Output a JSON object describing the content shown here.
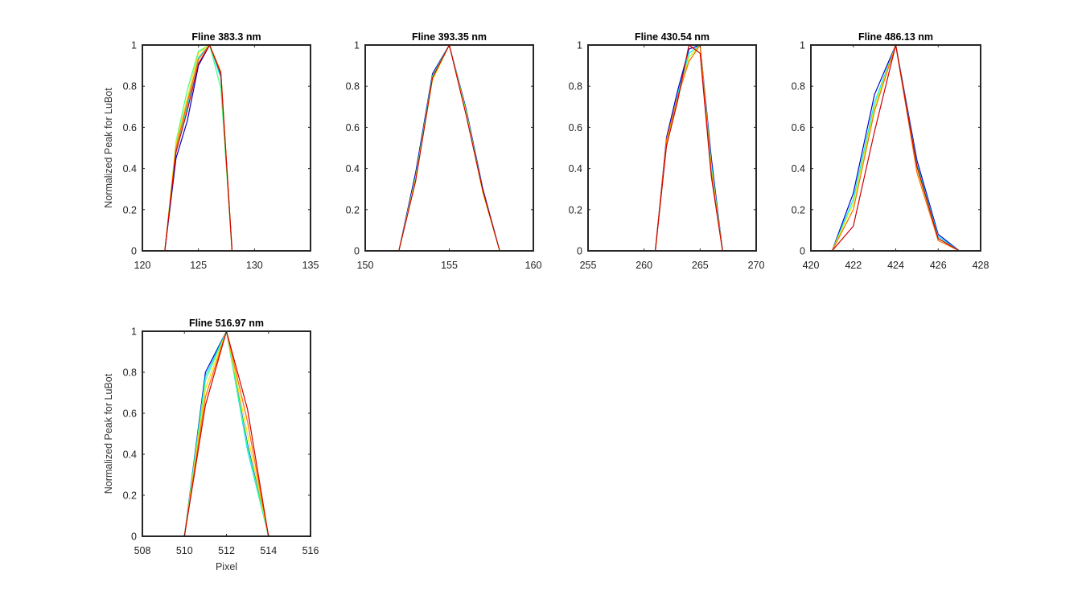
{
  "figure": {
    "background": "#ffffff",
    "axis_color": "#262626",
    "line_colors": [
      "#0000cc",
      "#0080ff",
      "#00e5ff",
      "#40ff80",
      "#c8ff00",
      "#ffdd00",
      "#ff6a00",
      "#e60000",
      "#cc0000"
    ]
  },
  "chart_data": [
    {
      "type": "line",
      "title": "Fline 383.3 nm",
      "xlabel": "",
      "ylabel": "Normalized Peak for LuBot",
      "xlim": [
        120,
        135
      ],
      "ylim": [
        0,
        1
      ],
      "xticks": [
        120,
        125,
        130,
        135
      ],
      "yticks": [
        0,
        0.2,
        0.4,
        0.6,
        0.8,
        1
      ],
      "x": [
        120,
        121,
        122,
        123,
        124,
        125,
        126,
        127,
        128,
        129,
        130,
        131,
        132
      ],
      "series": [
        {
          "values": [
            0,
            0,
            0,
            0.45,
            0.63,
            0.9,
            1,
            0.85,
            0,
            0,
            0,
            0,
            0
          ]
        },
        {
          "values": [
            0,
            0,
            0,
            0.5,
            0.7,
            0.94,
            1,
            0.84,
            0,
            0,
            0,
            0,
            0
          ]
        },
        {
          "values": [
            0,
            0,
            0,
            0.53,
            0.78,
            0.97,
            1,
            0.79,
            0,
            0,
            0,
            0,
            0
          ]
        },
        {
          "values": [
            0,
            0,
            0,
            0.52,
            0.74,
            0.96,
            1,
            0.86,
            0,
            0,
            0,
            0,
            0
          ]
        },
        {
          "values": [
            0,
            0,
            0,
            0.5,
            0.72,
            0.93,
            1,
            0.87,
            0,
            0,
            0,
            0,
            0
          ]
        },
        {
          "values": [
            0,
            0,
            0,
            0.48,
            0.68,
            0.91,
            1,
            0.86,
            0,
            0,
            0,
            0,
            0
          ]
        }
      ]
    },
    {
      "type": "line",
      "title": "Fline 393.35 nm",
      "xlabel": "",
      "ylabel": "",
      "xlim": [
        150,
        160
      ],
      "ylim": [
        0,
        1
      ],
      "xticks": [
        150,
        155,
        160
      ],
      "yticks": [
        0,
        0.2,
        0.4,
        0.6,
        0.8,
        1
      ],
      "x": [
        151,
        152,
        153,
        154,
        155,
        156,
        157,
        158,
        159
      ],
      "series": [
        {
          "values": [
            0,
            0,
            0.38,
            0.86,
            1,
            0.69,
            0.3,
            0,
            0
          ]
        },
        {
          "values": [
            0,
            0,
            0.36,
            0.85,
            1,
            0.68,
            0.29,
            0,
            0
          ]
        },
        {
          "values": [
            0,
            0,
            0.35,
            0.83,
            1,
            0.67,
            0.28,
            0,
            0
          ]
        },
        {
          "values": [
            0,
            0,
            0.34,
            0.84,
            1,
            0.66,
            0.29,
            0,
            0
          ]
        }
      ]
    },
    {
      "type": "line",
      "title": "Fline 430.54 nm",
      "xlabel": "",
      "ylabel": "",
      "xlim": [
        255,
        270
      ],
      "ylim": [
        0,
        1
      ],
      "xticks": [
        255,
        260,
        265,
        270
      ],
      "yticks": [
        0,
        0.2,
        0.4,
        0.6,
        0.8,
        1
      ],
      "x": [
        259,
        260,
        261,
        262,
        263,
        264,
        265,
        266,
        267,
        268,
        269,
        270
      ],
      "series": [
        {
          "values": [
            0,
            0,
            0,
            0.55,
            0.78,
            0.98,
            1,
            0.45,
            0,
            0,
            0,
            0
          ]
        },
        {
          "values": [
            0,
            0,
            0,
            0.53,
            0.76,
            0.96,
            1,
            0.42,
            0,
            0,
            0,
            0
          ]
        },
        {
          "values": [
            0,
            0,
            0,
            0.52,
            0.74,
            0.94,
            1,
            0.4,
            0,
            0,
            0,
            0
          ]
        },
        {
          "values": [
            0,
            0,
            0,
            0.54,
            0.75,
            0.92,
            1,
            0.38,
            0,
            0,
            0,
            0
          ]
        },
        {
          "values": [
            0,
            0,
            0,
            0.51,
            0.73,
            1,
            0.96,
            0.36,
            0,
            0,
            0,
            0
          ]
        }
      ]
    },
    {
      "type": "line",
      "title": "Fline 486.13 nm",
      "xlabel": "",
      "ylabel": "",
      "xlim": [
        420,
        428
      ],
      "ylim": [
        0,
        1
      ],
      "xticks": [
        420,
        422,
        424,
        426,
        428
      ],
      "yticks": [
        0,
        0.2,
        0.4,
        0.6,
        0.8,
        1
      ],
      "x": [
        421,
        422,
        423,
        424,
        425,
        426,
        427
      ],
      "series": [
        {
          "values": [
            0,
            0.28,
            0.76,
            1,
            0.44,
            0.08,
            0
          ]
        },
        {
          "values": [
            0,
            0.25,
            0.72,
            1,
            0.42,
            0.07,
            0
          ]
        },
        {
          "values": [
            0,
            0.23,
            0.7,
            1,
            0.4,
            0.06,
            0
          ]
        },
        {
          "values": [
            0,
            0.2,
            0.68,
            1,
            0.38,
            0.05,
            0
          ]
        },
        {
          "values": [
            0,
            0.12,
            0.58,
            1,
            0.41,
            0.06,
            0
          ]
        }
      ]
    },
    {
      "type": "line",
      "title": "Fline 516.97 nm",
      "xlabel": "Pixel",
      "ylabel": "Normalized Peak for LuBot",
      "xlim": [
        508,
        516
      ],
      "ylim": [
        0,
        1
      ],
      "xticks": [
        508,
        510,
        512,
        514,
        516
      ],
      "yticks": [
        0,
        0.2,
        0.4,
        0.6,
        0.8,
        1
      ],
      "x": [
        509,
        510,
        511,
        512,
        513,
        514,
        515
      ],
      "series": [
        {
          "values": [
            0,
            0,
            0.8,
            1,
            0.45,
            0,
            0
          ]
        },
        {
          "values": [
            0,
            0,
            0.78,
            1,
            0.42,
            0,
            0
          ]
        },
        {
          "values": [
            0,
            0,
            0.76,
            1,
            0.44,
            0,
            0
          ]
        },
        {
          "values": [
            0,
            0,
            0.72,
            1,
            0.5,
            0,
            0
          ]
        },
        {
          "values": [
            0,
            0,
            0.68,
            1,
            0.56,
            0,
            0
          ]
        },
        {
          "values": [
            0,
            0,
            0.64,
            1,
            0.62,
            0,
            0
          ]
        }
      ]
    }
  ]
}
